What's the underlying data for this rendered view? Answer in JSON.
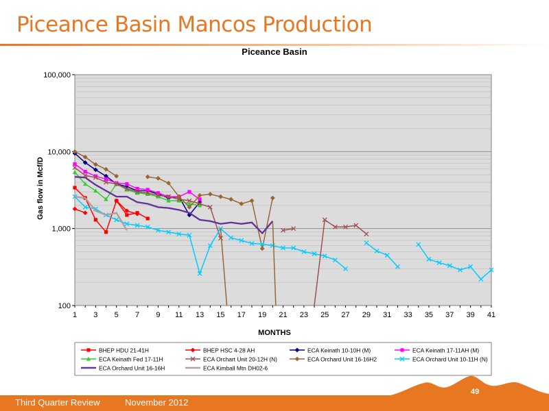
{
  "slide": {
    "title": "Piceance Basin Mancos Production",
    "footer_left": "Third Quarter Review",
    "footer_date": "November 2012",
    "page_number": "49"
  },
  "colors": {
    "accent": "#E87722",
    "plot_bg": "#DCDCDC"
  },
  "chart_data": {
    "type": "line",
    "title": "Piceance Basin",
    "xlabel": "MONTHS",
    "ylabel": "Gas flow in Mcf/D",
    "y_scale": "log",
    "ylim": [
      100,
      100000
    ],
    "xlim": [
      1,
      41
    ],
    "x_ticks": [
      "1",
      "3",
      "5",
      "7",
      "9",
      "11",
      "13",
      "15",
      "17",
      "19",
      "21",
      "23",
      "25",
      "27",
      "29",
      "31",
      "33",
      "35",
      "37",
      "39",
      "41"
    ],
    "y_ticks": [
      "100",
      "1,000",
      "10,000",
      "100,000"
    ],
    "grid": true,
    "legend_position": "bottom",
    "series": [
      {
        "name": "BHEP HDU 21-41H",
        "color": "#FF0000",
        "marker": "square",
        "x": [
          1,
          2,
          3,
          4,
          5,
          6,
          7,
          8
        ],
        "y": [
          3400,
          2500,
          1300,
          900,
          2300,
          1500,
          1600,
          1350
        ]
      },
      {
        "name": "BHEP HSC 4-28 AH",
        "color": "#FF0000",
        "marker": "diamond",
        "x": [
          1,
          2,
          3,
          5,
          6,
          7
        ],
        "y": [
          1800,
          1600,
          null,
          2300,
          1700,
          1550
        ]
      },
      {
        "name": "ECA Keinath 10-10H (M)",
        "color": "#000080",
        "marker": "diamond",
        "x": [
          1,
          2,
          3,
          4,
          5,
          6,
          7,
          8,
          9,
          10,
          11,
          12,
          13
        ],
        "y": [
          9500,
          7200,
          5800,
          4800,
          3800,
          3500,
          3100,
          3100,
          2800,
          2500,
          2600,
          1500,
          2200
        ]
      },
      {
        "name": "ECA Keinath 17-11AH (M)",
        "color": "#FF00FF",
        "marker": "square",
        "x": [
          1,
          2,
          3,
          4,
          5,
          6,
          7,
          8,
          9,
          10,
          11,
          12,
          13
        ],
        "y": [
          6900,
          5500,
          4800,
          4400,
          3900,
          3800,
          3300,
          3200,
          2900,
          2600,
          2600,
          3000,
          2400
        ]
      },
      {
        "name": "ECA Keinath Fed 17-11H",
        "color": "#33CC33",
        "marker": "triangle",
        "x": [
          1,
          2,
          3,
          4,
          5,
          6,
          7,
          8,
          9,
          10,
          11,
          12,
          13
        ],
        "y": [
          5400,
          3800,
          3100,
          2400,
          3800,
          3200,
          2900,
          2800,
          2600,
          2300,
          2300,
          2100,
          2000
        ]
      },
      {
        "name": "ECA Orchart Unit 20-12H (N)",
        "color": "#A05050",
        "marker": "x",
        "x": [
          1,
          2,
          3,
          4,
          5,
          6,
          7,
          8,
          9,
          10,
          11,
          12,
          13,
          14,
          15,
          16,
          17,
          18,
          19,
          20,
          21,
          22,
          23,
          24,
          25,
          26,
          27,
          28,
          29
        ],
        "y": [
          6200,
          4900,
          4600,
          4000,
          3800,
          3300,
          3000,
          2900,
          2700,
          2600,
          2400,
          2300,
          2100,
          1900,
          750,
          null,
          null,
          null,
          null,
          null,
          950,
          1000,
          null,
          null,
          1300,
          1050,
          1050,
          1100,
          850
        ]
      },
      {
        "name": "ECA Orchard Unit 16-16H2",
        "color": "#996633",
        "marker": "diamond",
        "x": [
          1,
          2,
          3,
          4,
          5,
          6,
          7,
          8,
          9,
          10,
          11,
          12,
          13,
          14,
          15,
          16,
          17,
          18,
          19,
          20
        ],
        "y": [
          10000,
          8500,
          6800,
          5900,
          4800,
          null,
          null,
          4700,
          4500,
          3900,
          2600,
          1900,
          2700,
          2800,
          2600,
          2400,
          2100,
          2300,
          550,
          2500
        ]
      },
      {
        "name": "ECA Orchard Unit 10-11H (N)",
        "color": "#00CCFF",
        "marker": "x",
        "x": [
          1,
          2,
          3,
          4,
          5,
          6,
          7,
          8,
          9,
          10,
          11,
          12,
          13,
          14,
          15,
          16,
          17,
          18,
          19,
          20,
          21,
          22,
          23,
          24,
          25,
          26,
          27,
          28,
          29,
          30,
          31,
          32,
          33,
          34,
          35,
          36,
          37,
          38,
          39,
          40,
          41
        ],
        "y": [
          2600,
          1900,
          1800,
          1500,
          1300,
          1150,
          1100,
          1050,
          950,
          900,
          850,
          820,
          260,
          600,
          1000,
          760,
          700,
          640,
          630,
          600,
          560,
          560,
          500,
          470,
          440,
          390,
          300,
          null,
          650,
          510,
          450,
          320,
          null,
          620,
          400,
          360,
          330,
          290,
          320,
          220,
          290
        ]
      },
      {
        "name": "ECA Orchard Unit 16-16H",
        "color": "#663399",
        "marker": "line",
        "x": [
          1,
          2,
          3,
          4,
          5,
          6,
          7,
          8,
          9,
          10,
          11,
          12,
          13,
          14,
          15,
          16,
          17,
          18,
          19,
          20
        ],
        "y": [
          4700,
          4600,
          3700,
          3100,
          2600,
          2600,
          2200,
          2100,
          1900,
          1850,
          1750,
          1600,
          1300,
          1250,
          1150,
          1200,
          1150,
          1200,
          870,
          1250
        ]
      },
      {
        "name": "ECA Kimball Mtn DH02-6",
        "color": "#B0A0A0",
        "marker": "line",
        "x": [
          1,
          2,
          3,
          4,
          5,
          6
        ],
        "y": [
          2600,
          2500,
          1700,
          1500,
          1600,
          950
        ]
      }
    ],
    "drops": [
      {
        "series": "ECA Orchard Unit 16-16H2",
        "x_from": 15,
        "x_to": 15.6,
        "y_from": 1000
      },
      {
        "series": "ECA Orchard Unit 16-16H2",
        "x_from": 20,
        "x_to": 20.3,
        "y_from": 1250
      },
      {
        "series": "ECA Orchart Unit 20-12H (N)",
        "x_from": 24,
        "x_to": 25,
        "y_to": 1300
      }
    ]
  }
}
